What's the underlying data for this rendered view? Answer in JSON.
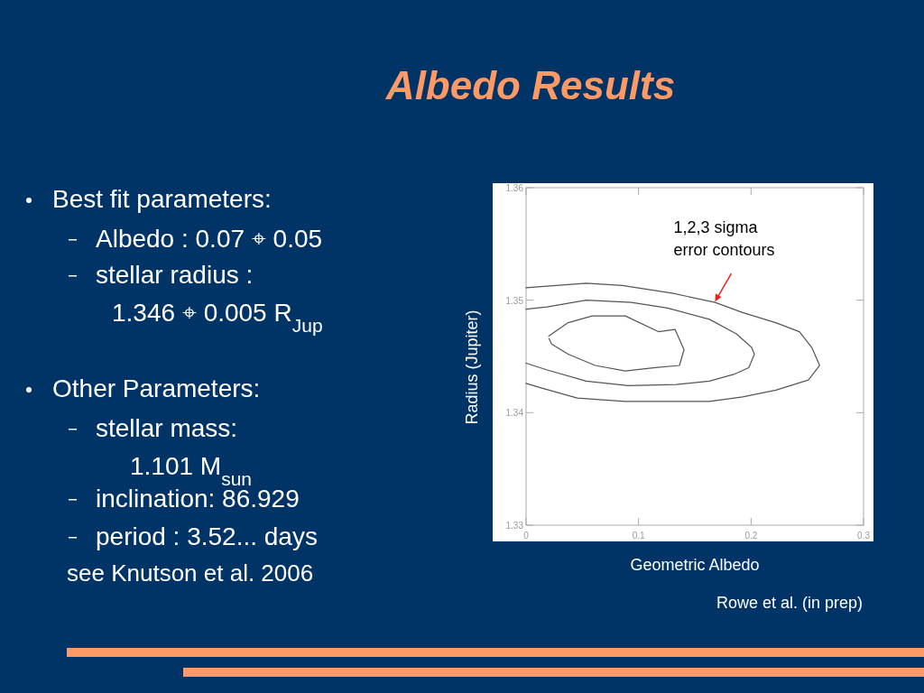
{
  "chart_data": {
    "type": "line",
    "title": "Albedo Results",
    "xlabel": "Geometric Albedo",
    "ylabel": "Radius (Jupiter)",
    "xlim": [
      0,
      0.3
    ],
    "ylim": [
      1.33,
      1.36
    ],
    "xticks": [
      0,
      0.1,
      0.2,
      0.3
    ],
    "yticks": [
      1.33,
      1.34,
      1.35,
      1.36
    ],
    "grid": false,
    "marker": "none",
    "line_style": "solid",
    "series": [
      {
        "color": "#555555",
        "x": [
          0,
          0.0535,
          0.0856,
          0.131,
          0.168,
          0.1925,
          0.222,
          0.243,
          0.254,
          0.261,
          0.251,
          0.222,
          0.1925,
          0.163,
          0.131,
          0.088,
          0.0455,
          0.0134,
          0
        ],
        "values": [
          1.3511,
          1.3515,
          1.3513,
          1.3506,
          1.3498,
          1.3489,
          1.348,
          1.3472,
          1.3458,
          1.3442,
          1.3429,
          1.342,
          1.3414,
          1.341,
          1.341,
          1.341,
          1.3413,
          1.3422,
          1.3426
        ]
      },
      {
        "color": "#555555",
        "x": [
          0,
          0.0187,
          0.0535,
          0.0936,
          0.1257,
          0.163,
          0.187,
          0.2005,
          0.203,
          0.198,
          0.1845,
          0.163,
          0.1337,
          0.0909,
          0.0535,
          0.0187,
          0
        ],
        "values": [
          1.3492,
          1.3494,
          1.35,
          1.3498,
          1.3493,
          1.3483,
          1.347,
          1.3458,
          1.3452,
          1.344,
          1.3434,
          1.3428,
          1.3425,
          1.3424,
          1.3428,
          1.3438,
          1.3444
        ]
      },
      {
        "color": "#555555",
        "x": [
          0.0201,
          0.0374,
          0.0588,
          0.0882,
          0.1176,
          0.1324,
          0.1404,
          0.1364,
          0.115,
          0.0882,
          0.0615,
          0.0374,
          0.0227,
          0.0203
        ],
        "values": [
          1.3468,
          1.348,
          1.3486,
          1.3486,
          1.3472,
          1.3474,
          1.3456,
          1.3442,
          1.344,
          1.3437,
          1.3442,
          1.3452,
          1.3461,
          1.3466
        ]
      }
    ],
    "annotations": [
      {
        "text": "1,2,3 sigma error contours",
        "x": 0.168,
        "y": 1.3498
      },
      "Rowe et al. (in prep)",
      "Best fit parameters:",
      "Albedo :   0.07 ⌖ 0.05",
      "stellar radius :",
      "1.346 ⌖ 0.005 R$_{Jup}$",
      "Other Parameters:",
      "stellar mass:",
      "1.101 M$_{sun}$",
      "inclination: 86.929",
      "period : 3.52... days",
      "see Knutson et al. 2006"
    ]
  }
}
